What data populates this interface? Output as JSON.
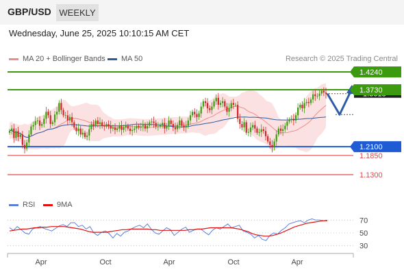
{
  "header": {
    "pair": "GBP/USD",
    "timeframe": "WEEKLY"
  },
  "datetime": "Wednesday, June 25, 2025 10:10:15 AM CET",
  "legend": {
    "ma20": {
      "label": "MA 20 + Bollinger Bands",
      "color": "#f08a8a"
    },
    "ma50": {
      "label": "MA 50",
      "color": "#2a5aa0"
    }
  },
  "credit": "Research © 2025 Trading Central",
  "rsi_legend": {
    "rsi": {
      "label": "RSI",
      "color": "#5b7fd6"
    },
    "ma9": {
      "label": "9MA",
      "color": "#e01010"
    }
  },
  "chart_data": [
    {
      "type": "candlestick",
      "title": "GBP/USD weekly",
      "y_range": [
        1.06,
        1.47
      ],
      "x_ticks": [
        "Apr",
        "Oct",
        "Apr",
        "Oct",
        "Apr"
      ],
      "levels": [
        {
          "value": "1.4240",
          "kind": "resistance",
          "color": "#3c9a0e"
        },
        {
          "value": "1.3730",
          "kind": "resistance",
          "color": "#3c9a0e"
        },
        {
          "value": "1.2100",
          "kind": "pivot",
          "color": "#1e5bd4"
        },
        {
          "value": "1.1850",
          "kind": "support",
          "color": "#e04848"
        },
        {
          "value": "1.1300",
          "kind": "support",
          "color": "#e04848"
        }
      ],
      "last_price": "1.3618",
      "close_series": [
        1.255,
        1.262,
        1.235,
        1.255,
        1.238,
        1.245,
        1.215,
        1.205,
        1.222,
        1.245,
        1.268,
        1.272,
        1.283,
        1.285,
        1.27,
        1.275,
        1.29,
        1.31,
        1.3,
        1.275,
        1.28,
        1.302,
        1.31,
        1.335,
        1.315,
        1.3,
        1.3,
        1.285,
        1.295,
        1.28,
        1.265,
        1.255,
        1.262,
        1.245,
        1.25,
        1.238,
        1.242,
        1.26,
        1.275,
        1.27,
        1.285,
        1.275,
        1.28,
        1.27,
        1.268,
        1.275,
        1.27,
        1.262,
        1.265,
        1.258,
        1.262,
        1.27,
        1.258,
        1.265,
        1.27,
        1.262,
        1.255,
        1.258,
        1.262,
        1.27,
        1.265,
        1.268,
        1.272,
        1.262,
        1.27,
        1.28,
        1.282,
        1.278,
        1.268,
        1.268,
        1.272,
        1.278,
        1.262,
        1.27,
        1.285,
        1.275,
        1.265,
        1.26,
        1.272,
        1.285,
        1.27,
        1.265,
        1.27,
        1.285,
        1.3,
        1.31,
        1.303,
        1.295,
        1.305,
        1.325,
        1.34,
        1.335,
        1.32,
        1.315,
        1.325,
        1.34,
        1.35,
        1.33,
        1.335,
        1.34,
        1.325,
        1.31,
        1.32,
        1.335,
        1.33,
        1.33,
        1.29,
        1.275,
        1.265,
        1.28,
        1.25,
        1.252,
        1.265,
        1.272,
        1.262,
        1.25,
        1.252,
        1.26,
        1.255,
        1.24,
        1.225,
        1.215,
        1.208,
        1.225,
        1.245,
        1.262,
        1.255,
        1.26,
        1.27,
        1.282,
        1.288,
        1.29,
        1.285,
        1.3,
        1.322,
        1.33,
        1.32,
        1.335,
        1.338,
        1.335,
        1.345,
        1.36,
        1.355,
        1.355,
        1.362,
        1.37,
        1.365,
        1.362
      ],
      "forecast": [
        1.3618,
        1.302,
        1.3795
      ]
    },
    {
      "type": "line",
      "title": "RSI",
      "y_ticks": [
        "70",
        "50",
        "30"
      ],
      "ylim": [
        20,
        80
      ],
      "series": [
        {
          "name": "RSI",
          "values": [
            58,
            54,
            60,
            55,
            50,
            48,
            56,
            58,
            60,
            57,
            55,
            53,
            57,
            61,
            63,
            60,
            66,
            66,
            60,
            62,
            56,
            60,
            50,
            46,
            51,
            53,
            49,
            42,
            49,
            45,
            51,
            53,
            57,
            60,
            62,
            58,
            64,
            56,
            50,
            48,
            53,
            58,
            55,
            46,
            51,
            56,
            59,
            51,
            54,
            56,
            56,
            51,
            47,
            54,
            58,
            56,
            60,
            64,
            58,
            60,
            62,
            53,
            51,
            48,
            42,
            46,
            40,
            38,
            46,
            50,
            48,
            54,
            58,
            64,
            66,
            68,
            69,
            66,
            70,
            72,
            70,
            70,
            69,
            70
          ]
        },
        {
          "name": "9MA",
          "values": [
            53,
            54,
            55,
            56,
            56,
            57,
            58,
            58,
            59,
            59,
            60,
            60,
            60,
            60,
            59,
            58,
            57,
            56,
            54,
            52,
            51,
            51,
            51,
            51,
            52,
            53,
            54,
            55,
            55,
            56,
            56,
            56,
            56,
            56,
            55,
            55,
            54,
            54,
            54,
            54,
            54,
            54,
            54,
            55,
            55,
            56,
            56,
            57,
            58,
            58,
            58,
            58,
            58,
            58,
            57,
            56,
            54,
            52,
            49,
            47,
            46,
            45,
            45,
            46,
            48,
            50,
            53,
            56,
            59,
            61,
            63,
            65,
            66,
            67,
            68,
            69,
            69
          ]
        }
      ]
    }
  ]
}
